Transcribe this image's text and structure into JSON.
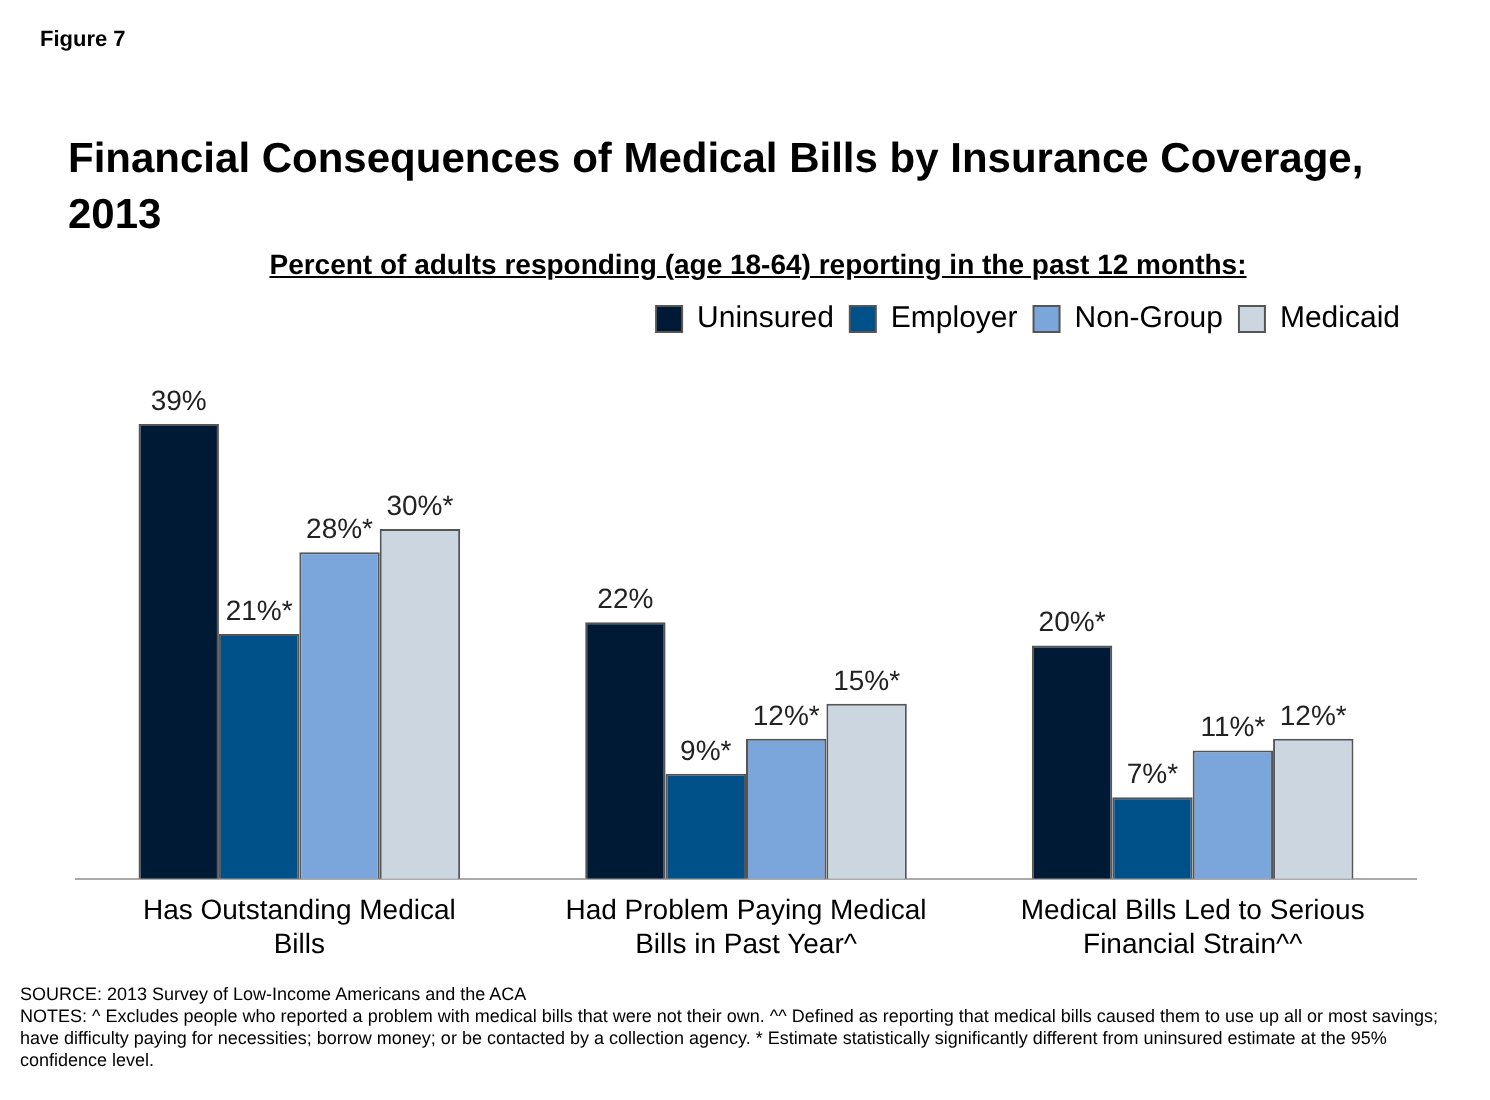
{
  "chart_data": {
    "type": "bar",
    "title": "Financial Consequences of Medical Bills by Insurance Coverage, 2013",
    "subtitle": "Percent of adults responding (age 18-64) reporting in the past 12 months:",
    "annotations": [
      "Figure 7",
      "SOURCE: 2013 Survey of Low-Income Americans and the ACA",
      "NOTES: ^ Excludes people who reported a problem with medical bills that were not their own. ^^ Defined as reporting that medical bills caused them to use up all or most savings; have difficulty paying for necessities; borrow money; or be contacted by a collection agency. * Estimate statistically significantly different from uninsured estimate at the 95% confidence level."
    ],
    "categories": [
      "Has Outstanding Medical Bills",
      "Had Problem Paying Medical Bills in Past Year^",
      "Medical Bills Led to Serious Financial Strain^^"
    ],
    "series": [
      {
        "name": "Uninsured",
        "color": "#001a35",
        "values": [
          39,
          22,
          20
        ],
        "value_labels": [
          "39%",
          "22%",
          "20%*"
        ]
      },
      {
        "name": "Employer",
        "color": "#00508a",
        "values": [
          21,
          9,
          7
        ],
        "value_labels": [
          "21%*",
          "9%*",
          "7%*"
        ]
      },
      {
        "name": "Non-Group",
        "color": "#7aa6dc",
        "values": [
          28,
          12,
          11
        ],
        "value_labels": [
          "28%*",
          "12%*",
          "11%*"
        ]
      },
      {
        "name": "Medicaid",
        "color": "#ccd6e1",
        "values": [
          30,
          15,
          12
        ],
        "value_labels": [
          "30%*",
          "15%*",
          "12%*"
        ]
      }
    ],
    "legend": "top right",
    "grid": false
  }
}
